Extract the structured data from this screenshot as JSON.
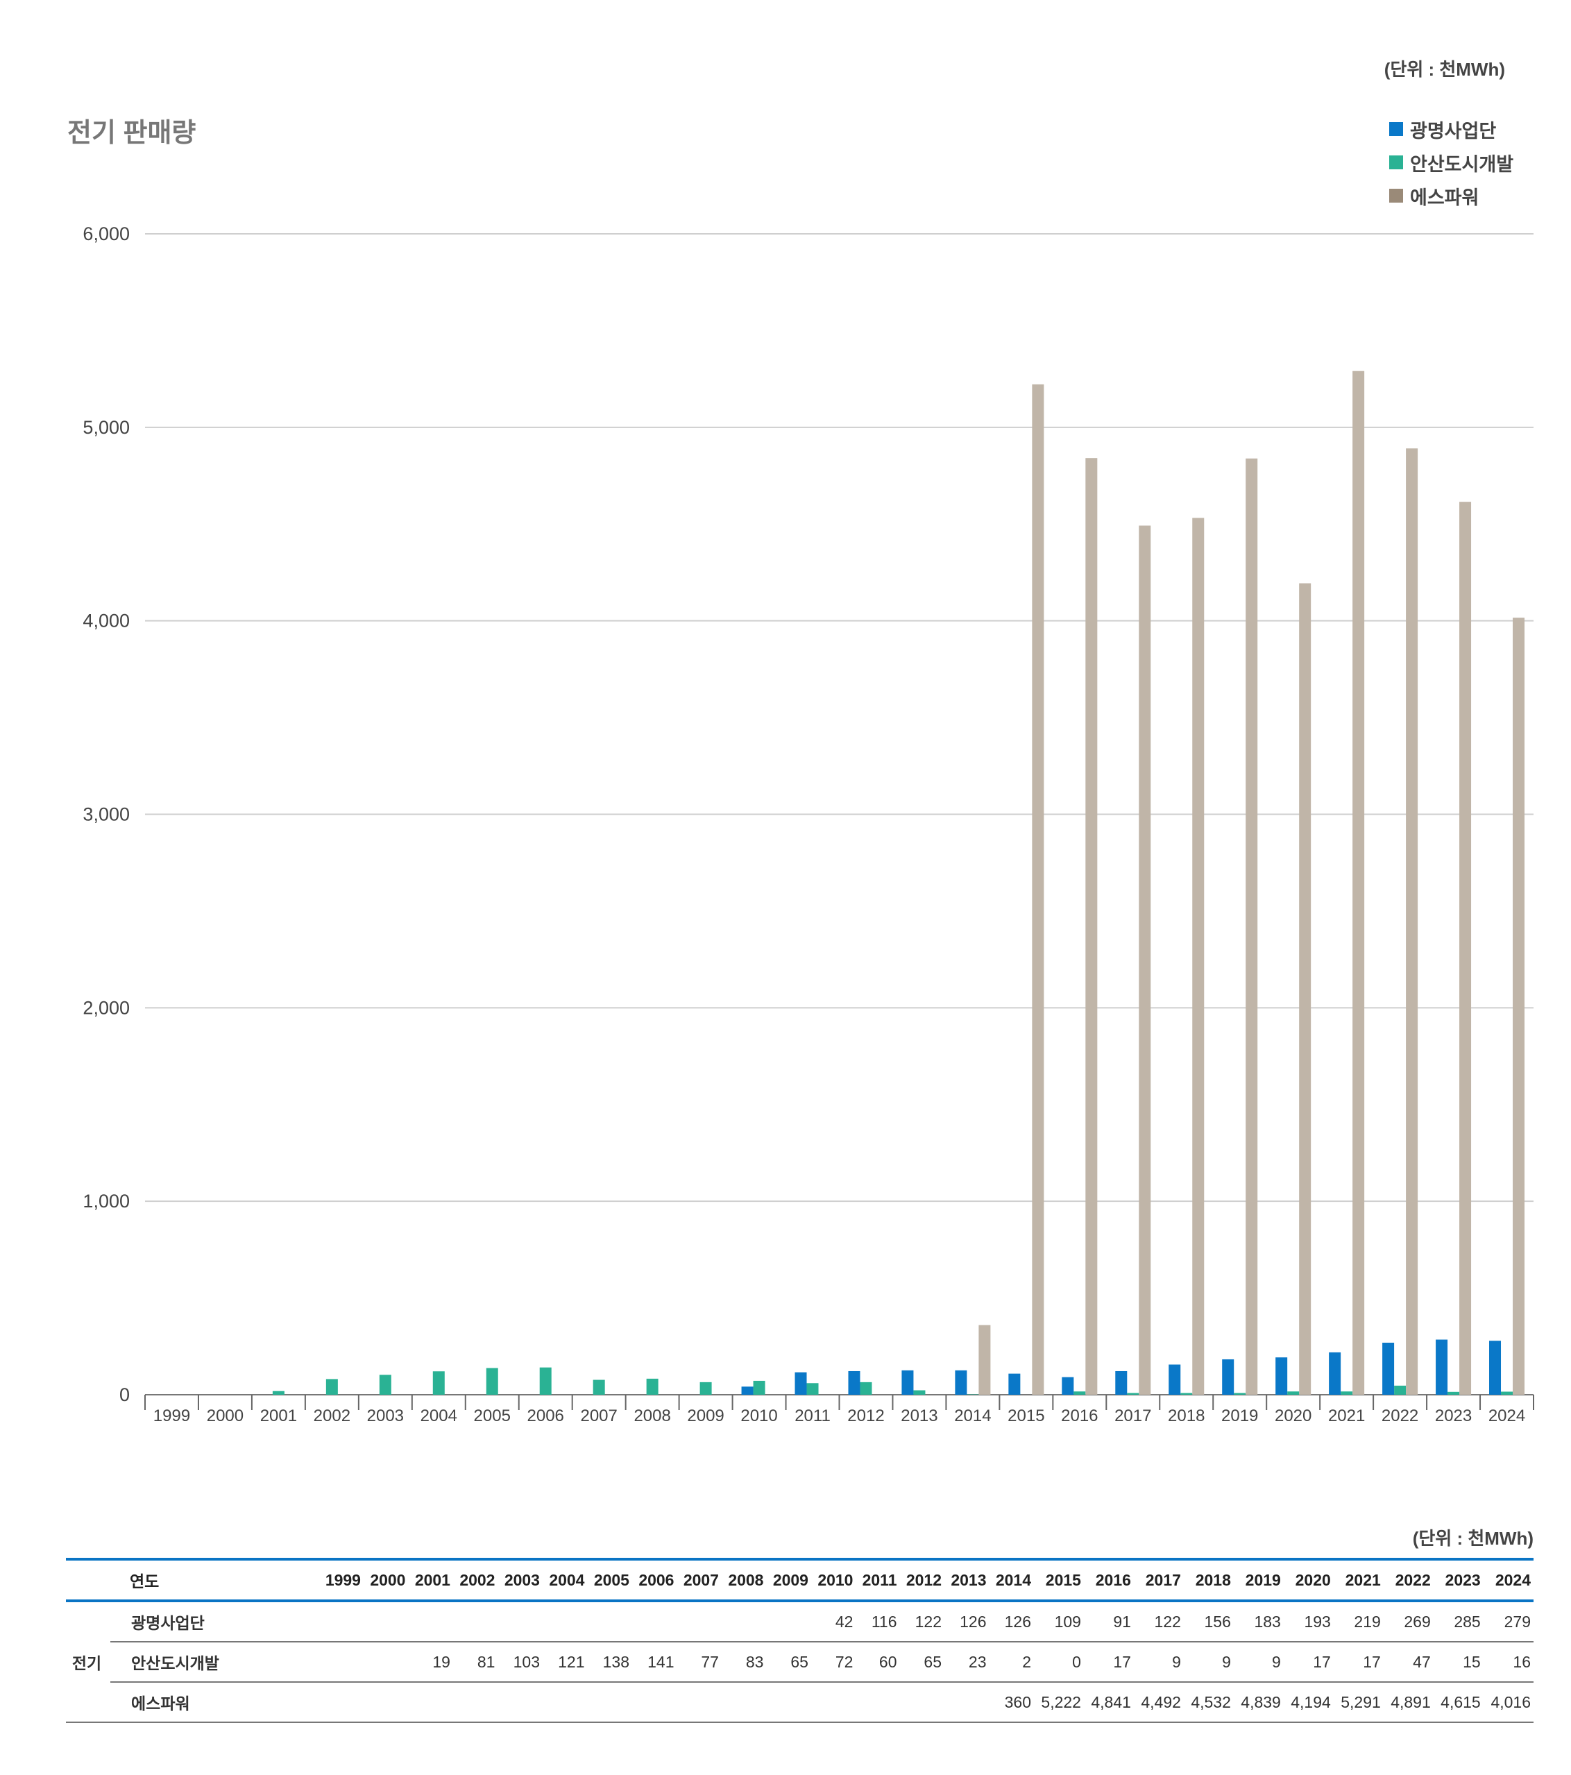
{
  "title": "전기 판매량",
  "unit_label": "(단위 : 천MWh)",
  "colors": {
    "광명사업단": "#0a78c8",
    "안산도시개발": "#2ab294",
    "에스파워_legend": "#9a8a78",
    "에스파워_bar": "#c0b5a8"
  },
  "chart_data": {
    "type": "bar",
    "title": "전기 판매량",
    "unit": "(단위 : 천MWh)",
    "categories": [
      "1999",
      "2000",
      "2001",
      "2002",
      "2003",
      "2004",
      "2005",
      "2006",
      "2007",
      "2008",
      "2009",
      "2010",
      "2011",
      "2012",
      "2013",
      "2014",
      "2015",
      "2016",
      "2017",
      "2018",
      "2019",
      "2020",
      "2021",
      "2022",
      "2023",
      "2024"
    ],
    "series": [
      {
        "name": "광명사업단",
        "values": [
          null,
          null,
          null,
          null,
          null,
          null,
          null,
          null,
          null,
          null,
          null,
          42,
          116,
          122,
          126,
          126,
          109,
          91,
          122,
          156,
          183,
          193,
          219,
          269,
          285,
          279
        ]
      },
      {
        "name": "안산도시개발",
        "values": [
          null,
          null,
          19,
          81,
          103,
          121,
          138,
          141,
          77,
          83,
          65,
          72,
          60,
          65,
          23,
          2,
          0,
          17,
          9,
          9,
          9,
          17,
          17,
          47,
          15,
          16
        ]
      },
      {
        "name": "에스파워",
        "values": [
          null,
          null,
          null,
          null,
          null,
          null,
          null,
          null,
          null,
          null,
          null,
          null,
          null,
          null,
          null,
          360,
          5222,
          4841,
          4492,
          4532,
          4839,
          4194,
          5291,
          4891,
          4615,
          4016
        ]
      }
    ],
    "yticks": [
      "0",
      "1,000",
      "2,000",
      "3,000",
      "4,000",
      "5,000",
      "6,000"
    ],
    "ylim": [
      0,
      6000
    ],
    "grid": true,
    "legend": "top-right"
  },
  "table": {
    "year_header": "연도",
    "group_label": "전기",
    "rows": [
      {
        "label": "광명사업단",
        "cells": [
          "",
          "",
          "",
          "",
          "",
          "",
          "",
          "",
          "",
          "",
          "",
          "42",
          "116",
          "122",
          "126",
          "126",
          "109",
          "91",
          "122",
          "156",
          "183",
          "193",
          "219",
          "269",
          "285",
          "279"
        ]
      },
      {
        "label": "안산도시개발",
        "cells": [
          "",
          "",
          "19",
          "81",
          "103",
          "121",
          "138",
          "141",
          "77",
          "83",
          "65",
          "72",
          "60",
          "65",
          "23",
          "2",
          "0",
          "17",
          "9",
          "9",
          "9",
          "17",
          "17",
          "47",
          "15",
          "16"
        ]
      },
      {
        "label": "에스파워",
        "cells": [
          "",
          "",
          "",
          "",
          "",
          "",
          "",
          "",
          "",
          "",
          "",
          "",
          "",
          "",
          "",
          "360",
          "5,222",
          "4,841",
          "4,492",
          "4,532",
          "4,839",
          "4,194",
          "5,291",
          "4,891",
          "4,615",
          "4,016"
        ]
      }
    ]
  }
}
